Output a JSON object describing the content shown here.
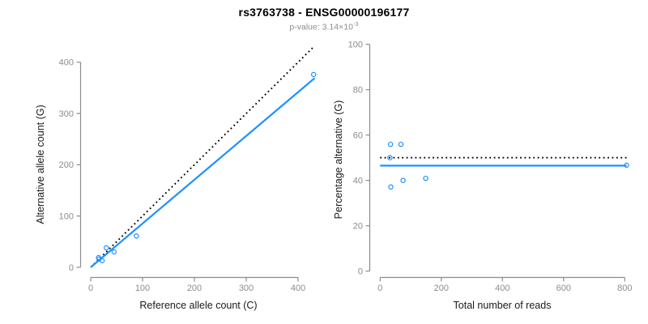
{
  "header": {
    "title": "rs3763738 - ENSG00000196177",
    "subtitle": {
      "prefix": "p-value: ",
      "mantissa": "3.14",
      "times": "×",
      "base": "10",
      "exponent": "-3"
    }
  },
  "colors": {
    "accent_blue": "#1E90FF",
    "dotted_black": "#000000",
    "axis_gray": "#8c8c8c",
    "tick_label_gray": "#8c8c8c",
    "axis_label_black": "#1a1a1a",
    "background": "#ffffff"
  },
  "chart_data": [
    {
      "type": "scatter",
      "title": "",
      "xlabel": "Reference allele count (C)",
      "ylabel": "Alternative allele count (G)",
      "xticks": [
        0,
        100,
        200,
        300,
        400
      ],
      "yticks": [
        0,
        100,
        200,
        300,
        400
      ],
      "xlim": [
        0,
        435
      ],
      "ylim": [
        0,
        434
      ],
      "grid": false,
      "legend": null,
      "point_color": "#1E90FF",
      "points": [
        [
          15,
          19
        ],
        [
          16,
          16
        ],
        [
          22,
          13
        ],
        [
          30,
          38
        ],
        [
          45,
          30
        ],
        [
          88,
          61
        ],
        [
          430,
          376
        ]
      ],
      "lines": [
        {
          "name": "identity-line",
          "style": "dotted",
          "color": "#000000",
          "x1": 0,
          "y1": 0,
          "x2": 432,
          "y2": 432
        },
        {
          "name": "fit-line",
          "style": "solid",
          "color": "#1E90FF",
          "x1": 0,
          "y1": 0,
          "x2": 432,
          "y2": 369
        }
      ]
    },
    {
      "type": "scatter",
      "title": "",
      "xlabel": "Total number of reads",
      "ylabel": "Percentage alternative (G)",
      "xticks": [
        0,
        200,
        400,
        600,
        800
      ],
      "yticks": [
        0,
        20,
        40,
        60,
        80,
        100
      ],
      "xlim": [
        0,
        836
      ],
      "ylim": [
        0,
        100
      ],
      "grid": false,
      "legend": null,
      "point_color": "#1E90FF",
      "points": [
        [
          34,
          55.9
        ],
        [
          32,
          50
        ],
        [
          35,
          37.1
        ],
        [
          68,
          55.9
        ],
        [
          75,
          40
        ],
        [
          149,
          40.9
        ],
        [
          806,
          46.7
        ]
      ],
      "lines": [
        {
          "name": "fifty-percent-line",
          "style": "dotted",
          "color": "#000000",
          "x1": 0,
          "y1": 50,
          "x2": 806,
          "y2": 50
        },
        {
          "name": "fit-line",
          "style": "solid",
          "color": "#1E90FF",
          "x1": 0,
          "y1": 46.5,
          "x2": 806,
          "y2": 46.5
        }
      ]
    }
  ]
}
